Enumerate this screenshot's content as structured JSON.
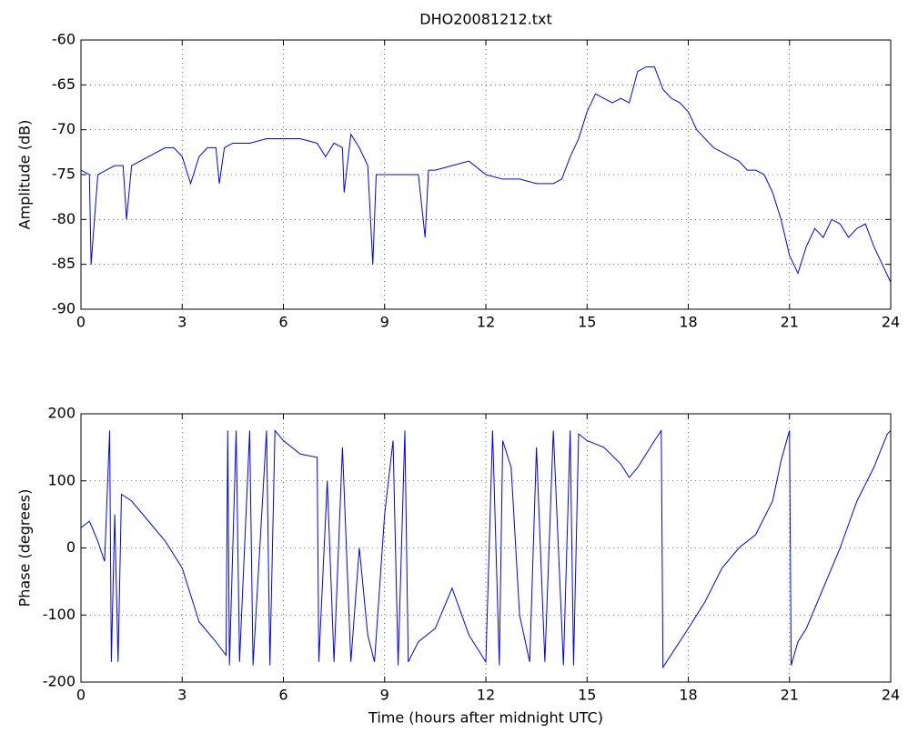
{
  "chart_data": [
    {
      "type": "line",
      "title": "DHO20081212.txt",
      "ylabel": "Amplitude (dB)",
      "color": "#0000ff",
      "grid": true,
      "xlim": [
        0,
        24
      ],
      "xticks": [
        0,
        3,
        6,
        9,
        12,
        15,
        18,
        21,
        24
      ],
      "ylim": [
        -90,
        -60
      ],
      "yticks": [
        -90,
        -85,
        -80,
        -75,
        -70,
        -65,
        -60
      ],
      "x": [
        0,
        0.25,
        0.3,
        0.5,
        0.75,
        1,
        1.25,
        1.35,
        1.5,
        1.75,
        2,
        2.25,
        2.5,
        2.75,
        3,
        3.25,
        3.5,
        3.75,
        4,
        4.1,
        4.25,
        4.5,
        5,
        5.5,
        6,
        6.5,
        7,
        7.25,
        7.5,
        7.75,
        7.8,
        8,
        8.25,
        8.5,
        8.65,
        8.75,
        9,
        9.5,
        10,
        10.2,
        10.3,
        10.5,
        11,
        11.5,
        12,
        12.5,
        13,
        13.5,
        14,
        14.25,
        14.5,
        14.75,
        15,
        15.25,
        15.5,
        15.75,
        16,
        16.25,
        16.5,
        16.75,
        17,
        17.25,
        17.5,
        17.75,
        18,
        18.25,
        18.5,
        18.75,
        19,
        19.25,
        19.5,
        19.75,
        20,
        20.25,
        20.5,
        20.75,
        21,
        21.25,
        21.5,
        21.75,
        22,
        22.25,
        22.5,
        22.75,
        23,
        23.25,
        23.5,
        23.75,
        24
      ],
      "values": [
        -74.5,
        -75,
        -85,
        -75,
        -74.5,
        -74,
        -74,
        -80,
        -74,
        -73.5,
        -73,
        -72.5,
        -72,
        -72,
        -73,
        -76,
        -73,
        -72,
        -72,
        -76,
        -72,
        -71.5,
        -71.5,
        -71,
        -71,
        -71,
        -71.5,
        -73,
        -71.5,
        -72,
        -77,
        -70.5,
        -72,
        -74,
        -85,
        -75,
        -75,
        -75,
        -75,
        -82,
        -74.5,
        -74.5,
        -74,
        -73.5,
        -75,
        -75.5,
        -75.5,
        -76,
        -76,
        -75.5,
        -73,
        -71,
        -68,
        -66,
        -66.5,
        -67,
        -66.5,
        -67,
        -63.5,
        -63,
        -63,
        -65.5,
        -66.5,
        -67,
        -68,
        -70,
        -71,
        -72,
        -72.5,
        -73,
        -73.5,
        -74.5,
        -74.5,
        -75,
        -77,
        -80,
        -84,
        -86,
        -83,
        -81,
        -82,
        -80,
        -80.5,
        -82,
        -81,
        -80.5,
        -83,
        -85,
        -87
      ]
    },
    {
      "type": "line",
      "ylabel": "Phase (degrees)",
      "xlabel": "Time (hours after midnight UTC)",
      "color": "#0000ff",
      "grid": true,
      "xlim": [
        0,
        24
      ],
      "xticks": [
        0,
        3,
        6,
        9,
        12,
        15,
        18,
        21,
        24
      ],
      "ylim": [
        -200,
        200
      ],
      "yticks": [
        -200,
        -100,
        0,
        100,
        200
      ],
      "x": [
        0,
        0.25,
        0.5,
        0.7,
        0.85,
        0.9,
        1,
        1.1,
        1.2,
        1.5,
        2,
        2.5,
        3,
        3.25,
        3.5,
        4,
        4.3,
        4.35,
        4.4,
        4.6,
        4.7,
        5,
        5.1,
        5.5,
        5.6,
        5.75,
        6,
        6.5,
        7,
        7.05,
        7.3,
        7.5,
        7.75,
        8,
        8.25,
        8.5,
        8.7,
        9,
        9.25,
        9.4,
        9.6,
        9.7,
        10,
        10.5,
        11,
        11.5,
        12,
        12.2,
        12.4,
        12.5,
        12.75,
        13,
        13.3,
        13.5,
        13.75,
        14,
        14.3,
        14.5,
        14.6,
        14.75,
        15,
        15.5,
        16,
        16.25,
        16.5,
        17,
        17.2,
        17.25,
        18,
        18.5,
        19,
        19.5,
        20,
        20.5,
        20.75,
        21,
        21.05,
        21.25,
        21.5,
        22,
        22.5,
        23,
        23.5,
        23.9,
        24
      ],
      "values": [
        30,
        40,
        10,
        -20,
        175,
        -170,
        50,
        -170,
        80,
        70,
        40,
        10,
        -30,
        -70,
        -110,
        -140,
        -160,
        175,
        -175,
        175,
        -170,
        175,
        -175,
        175,
        -175,
        175,
        160,
        140,
        135,
        -170,
        100,
        -170,
        150,
        -170,
        0,
        -130,
        -170,
        50,
        160,
        -175,
        175,
        -170,
        -140,
        -120,
        -60,
        -130,
        -170,
        175,
        -175,
        160,
        120,
        -100,
        -170,
        150,
        -170,
        175,
        -175,
        175,
        -175,
        170,
        160,
        150,
        125,
        105,
        120,
        160,
        175,
        -178,
        -120,
        -80,
        -30,
        0,
        20,
        70,
        130,
        175,
        -175,
        -140,
        -120,
        -60,
        0,
        70,
        120,
        170,
        175
      ]
    }
  ]
}
